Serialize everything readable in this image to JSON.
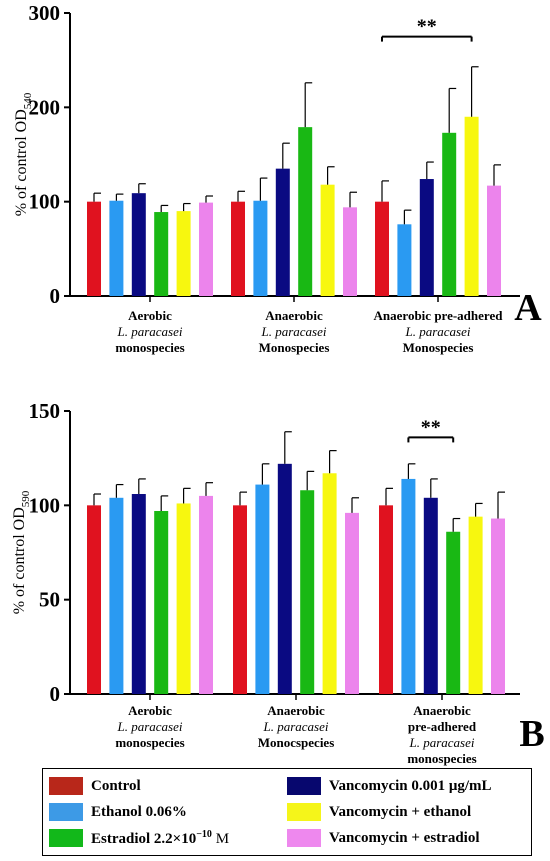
{
  "chart_data": [
    {
      "type": "bar",
      "panel_letter": "A",
      "ylabel_main": "% of control OD",
      "ylabel_sub": "540",
      "ylim": [
        0,
        300
      ],
      "yticks": [
        "0",
        "100",
        "200",
        "300"
      ],
      "yticks_values": [
        0,
        100,
        200,
        300
      ],
      "grid": false,
      "groups": [
        {
          "label_top": "Aerobic",
          "label_mid": "L. paracasei",
          "label_bot": "monospecies",
          "values": [
            100,
            101,
            109,
            89,
            90,
            99
          ],
          "errors": [
            9,
            7,
            10,
            7,
            8,
            7
          ]
        },
        {
          "label_top": "Anaerobic",
          "label_mid": "L. paracasei",
          "label_bot": "Monospecies",
          "values": [
            100,
            101,
            135,
            179,
            118,
            94
          ],
          "errors": [
            11,
            24,
            27,
            47,
            19,
            16
          ]
        },
        {
          "label_top": "Anaerobic pre-adhered",
          "label_mid": "L. paracasei",
          "label_bot": "Monospecies",
          "values": [
            100,
            76,
            124,
            173,
            190,
            117
          ],
          "errors": [
            22,
            15,
            18,
            47,
            53,
            22
          ]
        }
      ],
      "significance": {
        "label": "**",
        "group": 2,
        "from_bar": 0,
        "to_bar": 4,
        "y": 275
      }
    },
    {
      "type": "bar",
      "panel_letter": "B",
      "ylabel_main": "% of control OD",
      "ylabel_sub": "590",
      "ylim": [
        0,
        150
      ],
      "yticks": [
        "0",
        "50",
        "100",
        "150"
      ],
      "yticks_values": [
        0,
        50,
        100,
        150
      ],
      "grid": false,
      "groups": [
        {
          "label_top": "Aerobic",
          "label_mid": "L. paracasei",
          "label_bot": "monospecies",
          "values": [
            100,
            104,
            106,
            97,
            101,
            105
          ],
          "errors": [
            6,
            7,
            8,
            8,
            8,
            7
          ]
        },
        {
          "label_top": "Anaerobic",
          "label_mid": "L. paracasei",
          "label_bot": "Monocspecies",
          "values": [
            100,
            111,
            122,
            108,
            117,
            96
          ],
          "errors": [
            7,
            11,
            17,
            10,
            12,
            8
          ]
        },
        {
          "label_top": "Anaerobic",
          "label_top2": "pre-adhered",
          "label_mid": "L. paracasei",
          "label_bot": "monospecies",
          "values": [
            100,
            114,
            104,
            86,
            94,
            93
          ],
          "errors": [
            9,
            8,
            10,
            7,
            7,
            14
          ]
        }
      ],
      "significance": {
        "label": "**",
        "group": 2,
        "from_bar": 1,
        "to_bar": 3,
        "y": 136
      }
    }
  ],
  "series_colors": [
    "#e0121f",
    "#2a9af2",
    "#0a0a82",
    "#19b814",
    "#f7f70f",
    "#ec84ec"
  ],
  "legend": {
    "items": [
      {
        "label": "Control",
        "color": "#b8271a",
        "position": "left-1"
      },
      {
        "label": "Ethanol 0.06%",
        "color": "#3d9ae6",
        "position": "left-2"
      },
      {
        "label": "Estradiol 2.2×10",
        "sup": "−10",
        "suffix": " M",
        "color": "#12b81a",
        "position": "left-3"
      },
      {
        "label": "Vancomycin 0.001 μg/mL",
        "color": "#07076e",
        "position": "right-1"
      },
      {
        "label": "Vancomycin + ethanol",
        "color": "#f5f51a",
        "position": "right-2"
      },
      {
        "label": "Vancomycin + estradiol",
        "color": "#ee88ee",
        "position": "right-3"
      }
    ]
  }
}
